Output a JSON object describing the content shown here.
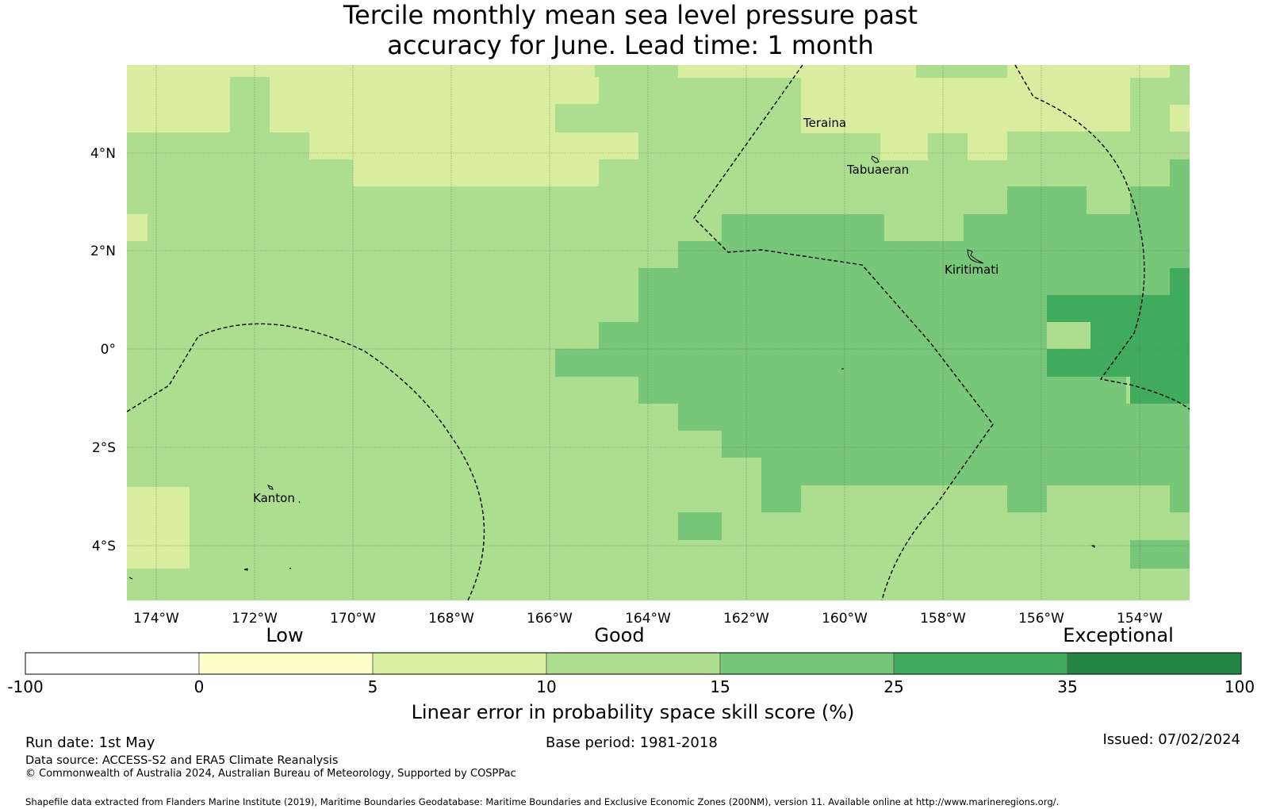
{
  "title": {
    "line1": "Tercile monthly mean sea level pressure past",
    "line2": "accuracy for June. Lead time: 1 month"
  },
  "map": {
    "x_ticks": [
      "174°W",
      "172°W",
      "170°W",
      "168°W",
      "166°W",
      "164°W",
      "162°W",
      "160°W",
      "158°W",
      "156°W",
      "154°W"
    ],
    "y_ticks": [
      "4°N",
      "2°N",
      "0°",
      "2°S",
      "4°S"
    ],
    "places": [
      "Teraina",
      "Tabuaeran",
      "Kiritimati",
      "Kanton"
    ],
    "colors": {
      "c1": "#d9eda0",
      "c2": "#addd8e",
      "c3": "#78c679",
      "c4": "#41ab5d",
      "grid": "#5a6a5a"
    }
  },
  "colorbar": {
    "category_labels": [
      "Low",
      "Good",
      "Exceptional"
    ],
    "ticks": [
      "-100",
      "0",
      "5",
      "10",
      "15",
      "25",
      "35",
      "100"
    ],
    "colors": [
      "#ffffff",
      "#ffffcc",
      "#d9f0a3",
      "#addd8e",
      "#78c679",
      "#41ab5d",
      "#238443"
    ],
    "label": "Linear error in probability space skill score (%)"
  },
  "footer": {
    "run_date": "Run date: 1st May",
    "base_period": "Base period: 1981-2018",
    "issued": "Issued: 07/02/2024",
    "data_source": "Data source: ACCESS-S2 and ERA5 Climate Reanalysis",
    "copyright": "© Commonwealth of Australia 2024, Australian Bureau of Meteorology, Supported by COSPPac",
    "shapefile": "Shapefile data extracted from Flanders Marine Institute (2019), Maritime Boundaries Geodatabase: Maritime Boundaries and Exclusive Economic Zones (200NM), version 11. Available online at http://www.marineregions.org/."
  }
}
